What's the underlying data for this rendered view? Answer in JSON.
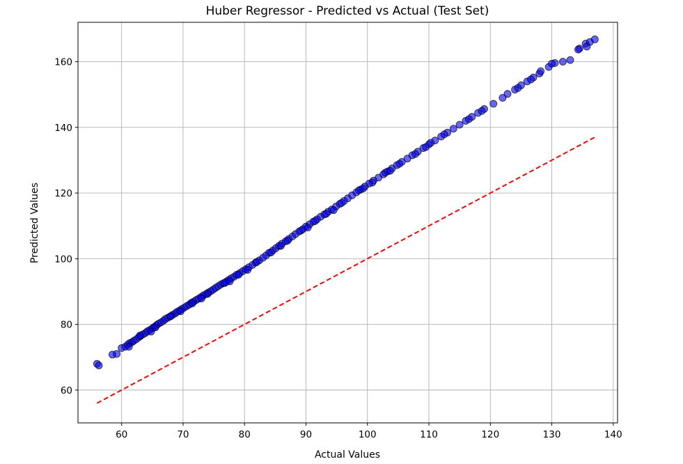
{
  "chart_data": {
    "type": "scatter",
    "title": "Huber Regressor - Predicted vs Actual (Test Set)",
    "xlabel": "Actual Values",
    "ylabel": "Predicted Values",
    "xlim": [
      52.9,
      140.7
    ],
    "ylim": [
      50,
      172
    ],
    "xticks": [
      60,
      70,
      80,
      90,
      100,
      110,
      120,
      130,
      140
    ],
    "yticks": [
      60,
      80,
      100,
      120,
      140,
      160
    ],
    "grid": true,
    "series": [
      {
        "kind": "scatter",
        "color": "#0000ff",
        "edge_color": "#000000",
        "alpha": 0.6,
        "points": [
          [
            56,
            68
          ],
          [
            56.3,
            67.5
          ],
          [
            58.5,
            70.8
          ],
          [
            59.2,
            71
          ],
          [
            60,
            72.8
          ],
          [
            60.6,
            73.2
          ],
          [
            61,
            73.8
          ],
          [
            61.3,
            74.3
          ],
          [
            61.7,
            74.6
          ],
          [
            62,
            75
          ],
          [
            62.4,
            75.5
          ],
          [
            62.8,
            76.1
          ],
          [
            63.1,
            76.5
          ],
          [
            63.5,
            77
          ],
          [
            63.9,
            77.4
          ],
          [
            64.2,
            77.9
          ],
          [
            64.6,
            78.3
          ],
          [
            65,
            78.8
          ],
          [
            65.3,
            79.2
          ],
          [
            65.7,
            79.8
          ],
          [
            66,
            80.2
          ],
          [
            66.4,
            80.6
          ],
          [
            66.8,
            81.1
          ],
          [
            67.1,
            81.6
          ],
          [
            67.5,
            82
          ],
          [
            67.9,
            82.4
          ],
          [
            68.3,
            82.9
          ],
          [
            68.7,
            83.3
          ],
          [
            69,
            83.8
          ],
          [
            69.4,
            84.2
          ],
          [
            69.8,
            84.7
          ],
          [
            70.2,
            85.1
          ],
          [
            70.6,
            85.6
          ],
          [
            71,
            86
          ],
          [
            71.3,
            86.5
          ],
          [
            71.7,
            86.9
          ],
          [
            72.1,
            87.4
          ],
          [
            72.5,
            87.8
          ],
          [
            72.9,
            88.3
          ],
          [
            73.3,
            88.8
          ],
          [
            73.7,
            89.2
          ],
          [
            74.1,
            89.7
          ],
          [
            74.5,
            90.1
          ],
          [
            74.9,
            90.6
          ],
          [
            75.3,
            91.1
          ],
          [
            75.7,
            91.6
          ],
          [
            76.1,
            92.1
          ],
          [
            76.5,
            92.5
          ],
          [
            77,
            93
          ],
          [
            77.4,
            93.5
          ],
          [
            77.8,
            94
          ],
          [
            78.3,
            94.5
          ],
          [
            78.7,
            95.1
          ],
          [
            79.2,
            95.6
          ],
          [
            79.7,
            96.2
          ],
          [
            80.2,
            96.8
          ],
          [
            80.7,
            97.4
          ],
          [
            81.3,
            98.1
          ],
          [
            81.8,
            98.8
          ],
          [
            82.4,
            99.5
          ],
          [
            83,
            100.3
          ],
          [
            83.5,
            101
          ],
          [
            84,
            101.8
          ],
          [
            84.6,
            102.5
          ],
          [
            85.1,
            103.2
          ],
          [
            85.6,
            103.9
          ],
          [
            86.1,
            104.6
          ],
          [
            86.7,
            105.3
          ],
          [
            87.2,
            106
          ],
          [
            87.8,
            106.8
          ],
          [
            88.3,
            107.5
          ],
          [
            88.9,
            108.3
          ],
          [
            89.5,
            109
          ],
          [
            90,
            109.8
          ],
          [
            90.6,
            110.5
          ],
          [
            91.2,
            111.3
          ],
          [
            91.8,
            112
          ],
          [
            92.4,
            112.8
          ],
          [
            93,
            113.5
          ],
          [
            93.6,
            114.3
          ],
          [
            94.2,
            115
          ],
          [
            94.9,
            115.9
          ],
          [
            95.5,
            116.7
          ],
          [
            96.2,
            117.6
          ],
          [
            96.8,
            118.4
          ],
          [
            97.5,
            119.3
          ],
          [
            98.2,
            120.2
          ],
          [
            98.9,
            121.1
          ],
          [
            99.6,
            122
          ],
          [
            100.3,
            122.9
          ],
          [
            101,
            123.8
          ],
          [
            101.8,
            124.7
          ],
          [
            102.6,
            125.7
          ],
          [
            103.3,
            126.6
          ],
          [
            104,
            127.5
          ],
          [
            104.8,
            128.5
          ],
          [
            105.6,
            129.5
          ],
          [
            106.5,
            130.5
          ],
          [
            107.3,
            131.5
          ],
          [
            108.2,
            132.6
          ],
          [
            109.1,
            133.7
          ],
          [
            110,
            134.8
          ],
          [
            111,
            136
          ],
          [
            112,
            137.2
          ],
          [
            113,
            138.4
          ],
          [
            114,
            139.6
          ],
          [
            115,
            140.8
          ],
          [
            116,
            142
          ],
          [
            117,
            143.2
          ],
          [
            118,
            144.4
          ],
          [
            119,
            145.6
          ],
          [
            120.5,
            147.2
          ],
          [
            122,
            149
          ],
          [
            124,
            151.5
          ],
          [
            125,
            152.8
          ],
          [
            126,
            154
          ],
          [
            127,
            155.2
          ],
          [
            128,
            156.4
          ],
          [
            129.5,
            158.4
          ],
          [
            130.5,
            159.6
          ],
          [
            131.8,
            160
          ],
          [
            133,
            160.5
          ],
          [
            134.5,
            164
          ],
          [
            135.5,
            165.5
          ],
          [
            136.2,
            166
          ],
          [
            137,
            166.8
          ],
          [
            63,
            76.6
          ],
          [
            65.5,
            79.1
          ],
          [
            68,
            82.5
          ],
          [
            71.5,
            86.4
          ],
          [
            74,
            89.3
          ],
          [
            76.8,
            92.6
          ],
          [
            79,
            95.1
          ],
          [
            82,
            99
          ],
          [
            84.3,
            101.9
          ],
          [
            87,
            105.5
          ],
          [
            89.2,
            108.6
          ],
          [
            91.5,
            111.5
          ],
          [
            93.3,
            113.7
          ],
          [
            95.8,
            117
          ],
          [
            98.6,
            120.8
          ],
          [
            100.8,
            123.2
          ],
          [
            102.9,
            126.2
          ],
          [
            105.2,
            128.9
          ],
          [
            107.8,
            131.9
          ],
          [
            109.5,
            134
          ],
          [
            116.5,
            142.5
          ],
          [
            124.5,
            152
          ],
          [
            130,
            159.4
          ],
          [
            134.3,
            163.7
          ],
          [
            135.7,
            164.6
          ],
          [
            61.2,
            73.2
          ],
          [
            64.8,
            77.8
          ],
          [
            69.6,
            84
          ],
          [
            73,
            87.9
          ],
          [
            77.6,
            93.1
          ],
          [
            80.5,
            96.6
          ],
          [
            85.9,
            103.9
          ],
          [
            90.3,
            109.5
          ],
          [
            94.5,
            114.8
          ],
          [
            99.3,
            121.4
          ],
          [
            103.7,
            126.8
          ],
          [
            110.3,
            135.3
          ],
          [
            112.5,
            137.9
          ],
          [
            118.6,
            145
          ],
          [
            122.8,
            150.2
          ],
          [
            126.6,
            154.6
          ],
          [
            128.2,
            157.1
          ]
        ]
      },
      {
        "kind": "line",
        "style": "dashed",
        "color": "#ff0000",
        "points": [
          [
            56,
            56
          ],
          [
            137,
            137
          ]
        ]
      }
    ]
  }
}
